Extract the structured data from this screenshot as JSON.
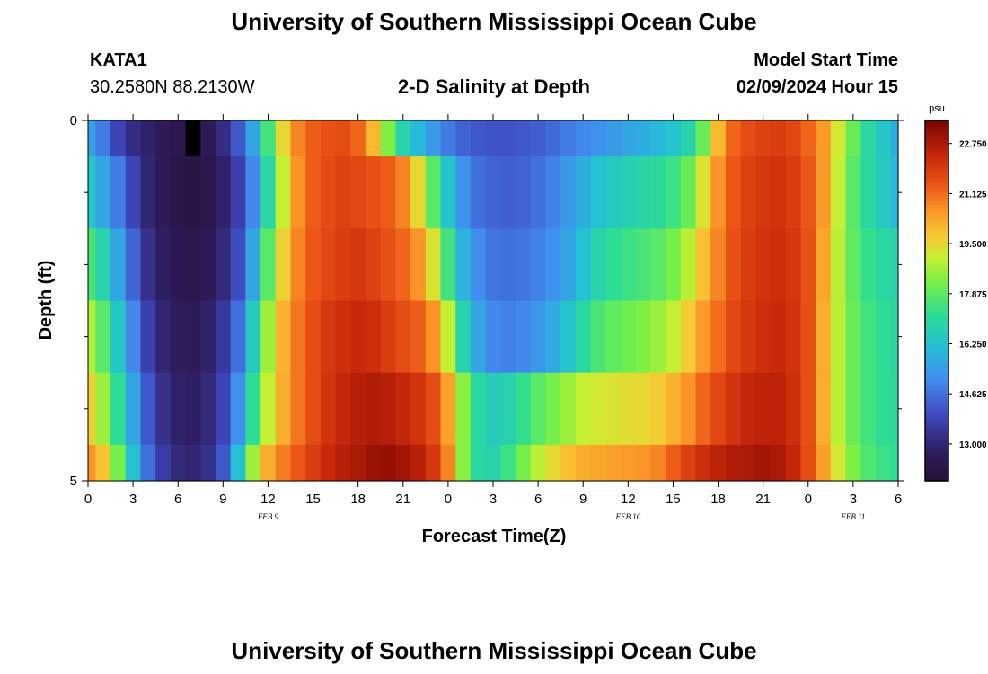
{
  "header": {
    "title": "University of Southern Mississippi Ocean Cube",
    "station_name": "KATA1",
    "station_coords": "30.2580N  88.2130W",
    "subtitle": "2-D Salinity at Depth",
    "model_start_label": "Model Start Time",
    "model_start_value": "02/09/2024 Hour 15"
  },
  "footer": {
    "title": "University of Southern Mississippi Ocean Cube"
  },
  "chart_data": {
    "type": "heatmap",
    "title": "2-D Salinity at Depth",
    "xlabel": "Forecast Time(Z)",
    "ylabel": "Depth (ft)",
    "x_tick_labels": [
      "0",
      "3",
      "6",
      "9",
      "12",
      "15",
      "18",
      "21",
      "0",
      "3",
      "6",
      "9",
      "12",
      "15",
      "18",
      "21",
      "0",
      "3",
      "6"
    ],
    "x_date_labels": [
      {
        "label": "FEB 9",
        "hour": 12
      },
      {
        "label": "FEB 10",
        "hour": 36
      },
      {
        "label": "FEB 11",
        "hour": 51
      }
    ],
    "xlim_hours": [
      0,
      54
    ],
    "y_tick_labels": [
      "0",
      "5"
    ],
    "ylim": [
      0,
      5
    ],
    "y_minor_ticks": [
      1,
      2,
      3,
      4
    ],
    "depth_bins": [
      0.25,
      1.25,
      2.25,
      3.25,
      4.25,
      4.75
    ],
    "colorbar": {
      "unit": "psu",
      "range": [
        11.8,
        23.5
      ],
      "tick_labels": [
        "13.000",
        "14.625",
        "16.250",
        "17.875",
        "19.500",
        "21.125",
        "22.750"
      ],
      "tick_values": [
        13.0,
        14.625,
        16.25,
        17.875,
        19.5,
        21.125,
        22.75
      ]
    },
    "series": [
      {
        "depth": 0.25,
        "hours": [
          0,
          1,
          2,
          3,
          4,
          5,
          6,
          7,
          8,
          9,
          10,
          11,
          12,
          13,
          14,
          15,
          16,
          17,
          18,
          19,
          20,
          21,
          22,
          23,
          24,
          25,
          26,
          27,
          28,
          29,
          30,
          31,
          32,
          33,
          34,
          35,
          36,
          37,
          38,
          39,
          40,
          41,
          42,
          43,
          44,
          45,
          46,
          47,
          48,
          49,
          50,
          51,
          52,
          53,
          54
        ],
        "values": [
          15.5,
          14.8,
          13.8,
          13.2,
          12.9,
          12.6,
          12.4,
          12.3,
          12.6,
          13.2,
          14.2,
          15.6,
          17.5,
          19.5,
          20.8,
          21.3,
          21.5,
          21.6,
          21.2,
          20.0,
          18.3,
          16.8,
          16.0,
          15.4,
          14.8,
          14.4,
          14.2,
          14.1,
          14.1,
          14.2,
          14.3,
          14.5,
          14.8,
          15.0,
          15.2,
          15.4,
          15.6,
          15.8,
          16.0,
          16.3,
          16.8,
          18.0,
          20.0,
          21.2,
          21.6,
          21.8,
          21.9,
          21.7,
          21.2,
          20.5,
          19.2,
          18.0,
          17.0,
          16.4,
          15.8
        ]
      },
      {
        "depth": 1.25,
        "hours": [
          0,
          1,
          2,
          3,
          4,
          5,
          6,
          7,
          8,
          9,
          10,
          11,
          12,
          13,
          14,
          15,
          16,
          17,
          18,
          19,
          20,
          21,
          22,
          23,
          24,
          25,
          26,
          27,
          28,
          29,
          30,
          31,
          32,
          33,
          34,
          35,
          36,
          37,
          38,
          39,
          40,
          41,
          42,
          43,
          44,
          45,
          46,
          47,
          48,
          49,
          50,
          51,
          52,
          53,
          54
        ],
        "values": [
          16.4,
          15.6,
          14.8,
          13.8,
          13.0,
          12.6,
          12.3,
          12.2,
          12.4,
          12.9,
          13.7,
          15.0,
          17.0,
          19.0,
          20.6,
          21.3,
          21.6,
          21.8,
          21.7,
          21.5,
          21.3,
          20.8,
          19.5,
          17.8,
          16.3,
          15.2,
          14.6,
          14.4,
          14.3,
          14.4,
          14.6,
          14.9,
          15.3,
          15.8,
          16.2,
          16.5,
          16.7,
          16.9,
          17.1,
          17.4,
          18.0,
          19.3,
          20.6,
          21.4,
          21.8,
          22.0,
          22.1,
          21.9,
          21.4,
          20.5,
          19.0,
          17.8,
          17.0,
          16.5,
          16.0
        ]
      },
      {
        "depth": 2.25,
        "hours": [
          0,
          1,
          2,
          3,
          4,
          5,
          6,
          7,
          8,
          9,
          10,
          11,
          12,
          13,
          14,
          15,
          16,
          17,
          18,
          19,
          20,
          21,
          22,
          23,
          24,
          25,
          26,
          27,
          28,
          29,
          30,
          31,
          32,
          33,
          34,
          35,
          36,
          37,
          38,
          39,
          40,
          41,
          42,
          43,
          44,
          45,
          46,
          47,
          48,
          49,
          50,
          51,
          52,
          53,
          54
        ],
        "values": [
          17.6,
          16.8,
          15.6,
          14.4,
          13.3,
          12.8,
          12.5,
          12.4,
          12.6,
          13.1,
          14.0,
          15.6,
          17.8,
          19.6,
          20.8,
          21.4,
          21.7,
          21.9,
          22.0,
          21.8,
          21.5,
          21.2,
          20.6,
          19.3,
          17.5,
          15.9,
          15.1,
          14.7,
          14.6,
          14.7,
          14.9,
          15.2,
          15.6,
          16.2,
          16.8,
          17.2,
          17.4,
          17.6,
          17.8,
          18.2,
          18.9,
          19.9,
          20.8,
          21.5,
          21.9,
          22.1,
          22.2,
          22.0,
          21.5,
          20.3,
          18.9,
          17.9,
          17.3,
          17.0,
          16.8
        ]
      },
      {
        "depth": 3.25,
        "hours": [
          0,
          1,
          2,
          3,
          4,
          5,
          6,
          7,
          8,
          9,
          10,
          11,
          12,
          13,
          14,
          15,
          16,
          17,
          18,
          19,
          20,
          21,
          22,
          23,
          24,
          25,
          26,
          27,
          28,
          29,
          30,
          31,
          32,
          33,
          34,
          35,
          36,
          37,
          38,
          39,
          40,
          41,
          42,
          43,
          44,
          45,
          46,
          47,
          48,
          49,
          50,
          51,
          52,
          53,
          54
        ],
        "values": [
          18.8,
          17.8,
          16.4,
          15.0,
          13.7,
          13.0,
          12.7,
          12.6,
          12.9,
          13.5,
          14.6,
          16.5,
          18.6,
          20.1,
          21.0,
          21.6,
          22.0,
          22.2,
          22.3,
          22.2,
          21.9,
          21.6,
          21.3,
          20.6,
          19.0,
          16.8,
          15.6,
          15.0,
          14.9,
          15.0,
          15.3,
          15.7,
          16.3,
          17.0,
          17.6,
          17.9,
          18.1,
          18.3,
          18.6,
          19.0,
          19.7,
          20.5,
          21.1,
          21.7,
          22.0,
          22.2,
          22.3,
          22.1,
          21.5,
          20.2,
          18.9,
          18.0,
          17.5,
          17.2,
          17.0
        ]
      },
      {
        "depth": 4.25,
        "hours": [
          0,
          1,
          2,
          3,
          4,
          5,
          6,
          7,
          8,
          9,
          10,
          11,
          12,
          13,
          14,
          15,
          16,
          17,
          18,
          19,
          20,
          21,
          22,
          23,
          24,
          25,
          26,
          27,
          28,
          29,
          30,
          31,
          32,
          33,
          34,
          35,
          36,
          37,
          38,
          39,
          40,
          41,
          42,
          43,
          44,
          45,
          46,
          47,
          48,
          49,
          50,
          51,
          52,
          53,
          54
        ],
        "values": [
          19.6,
          18.6,
          17.2,
          15.6,
          14.2,
          13.3,
          12.9,
          12.8,
          13.1,
          13.8,
          15.2,
          17.2,
          19.0,
          20.2,
          21.0,
          21.6,
          22.1,
          22.4,
          22.6,
          22.7,
          22.6,
          22.4,
          22.1,
          21.6,
          20.4,
          18.4,
          17.0,
          16.6,
          16.8,
          17.3,
          17.8,
          18.2,
          18.6,
          19.0,
          19.2,
          19.3,
          19.4,
          19.5,
          19.7,
          20.1,
          20.6,
          21.2,
          21.7,
          22.1,
          22.4,
          22.5,
          22.5,
          22.2,
          21.5,
          20.2,
          18.9,
          18.0,
          17.5,
          17.2,
          17.1
        ]
      },
      {
        "depth": 4.75,
        "hours": [
          0,
          1,
          2,
          3,
          4,
          5,
          6,
          7,
          8,
          9,
          10,
          11,
          12,
          13,
          14,
          15,
          16,
          17,
          18,
          19,
          20,
          21,
          22,
          23,
          24,
          25,
          26,
          27,
          28,
          29,
          30,
          31,
          32,
          33,
          34,
          35,
          36,
          37,
          38,
          39,
          40,
          41,
          42,
          43,
          44,
          45,
          46,
          47,
          48,
          49,
          50,
          51,
          52,
          53,
          54
        ],
        "values": [
          20.6,
          19.8,
          18.2,
          16.2,
          14.6,
          13.6,
          13.1,
          13.0,
          13.3,
          14.2,
          16.2,
          18.6,
          20.2,
          20.9,
          21.4,
          21.9,
          22.3,
          22.6,
          22.8,
          23.0,
          23.1,
          22.9,
          22.6,
          22.0,
          20.8,
          18.4,
          17.0,
          16.8,
          17.4,
          18.2,
          18.9,
          19.5,
          19.9,
          20.2,
          20.3,
          20.4,
          20.5,
          20.6,
          20.8,
          21.3,
          21.8,
          22.2,
          22.5,
          22.7,
          22.8,
          22.9,
          22.8,
          22.4,
          21.6,
          20.4,
          19.2,
          18.3,
          17.7,
          17.4,
          17.2
        ]
      }
    ],
    "missing_cells": [
      {
        "depth": 0.25,
        "hour": 7
      }
    ]
  }
}
